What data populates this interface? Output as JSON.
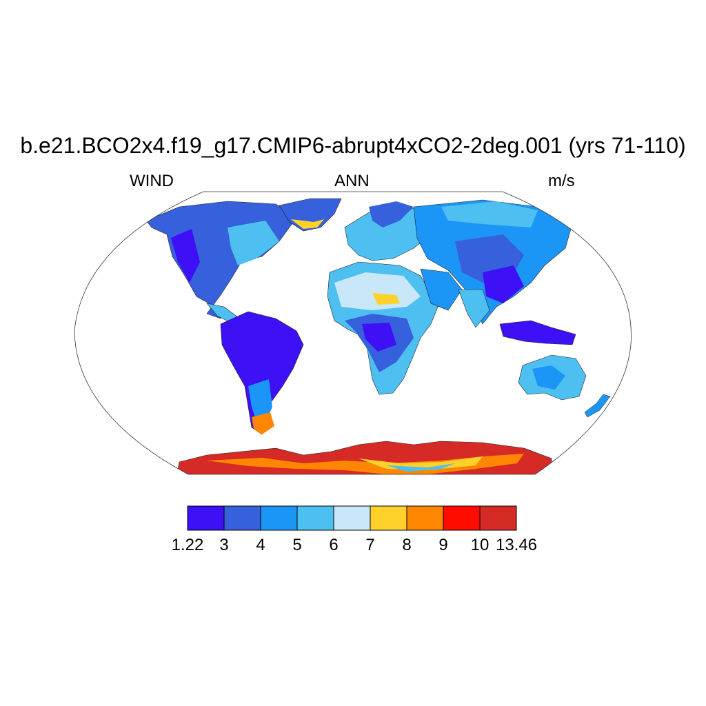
{
  "title": "b.e21.BCO2x4.f19_g17.CMIP6-abrupt4xCO2-2deg.001 (yrs 71-110)",
  "subtitle_left": "WIND",
  "subtitle_center": "ANN",
  "subtitle_right": "m/s",
  "colorbar": {
    "labels": [
      "1.22",
      "3",
      "4",
      "5",
      "6",
      "7",
      "8",
      "9",
      "10",
      "13.46"
    ],
    "colors": [
      "#3d10f5",
      "#3660dc",
      "#1b96f7",
      "#4dbff0",
      "#c8e7f8",
      "#ffd12a",
      "#ff8600",
      "#ff0c00",
      "#d62a27"
    ]
  },
  "map": {
    "projection": "robinson",
    "land_fill_default": "#4dbff0",
    "regions": [
      {
        "name": "antarctica",
        "color": "#d62a27"
      },
      {
        "name": "south-america-interior",
        "color": "#3d10f5"
      },
      {
        "name": "central-africa",
        "color": "#3660dc"
      },
      {
        "name": "sahara",
        "color": "#c8e7f8"
      },
      {
        "name": "greenland",
        "color": "#ffd12a"
      },
      {
        "name": "indonesia",
        "color": "#3d10f5"
      }
    ]
  }
}
